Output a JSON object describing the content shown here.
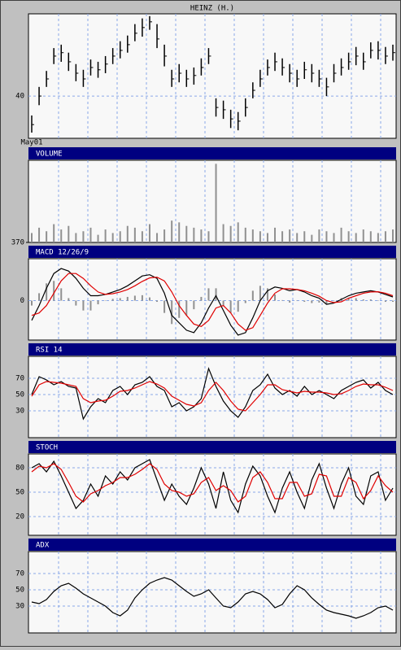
{
  "chart_data": [
    {
      "type": "ohlc",
      "title": "HEINZ (H.)",
      "ylim": [
        36.3,
        47.2
      ],
      "yticks": [
        40
      ],
      "grid": true,
      "color": "#000000",
      "categories": [
        "May01",
        null,
        null,
        null,
        null,
        null,
        null,
        null,
        null,
        null,
        null,
        null,
        null,
        null,
        null,
        null,
        null,
        null,
        null,
        null,
        null,
        null,
        null,
        null,
        null,
        null,
        null,
        null,
        null,
        null,
        null,
        null,
        null,
        null,
        null,
        null,
        null,
        null,
        null,
        null,
        null,
        null,
        null,
        null,
        null,
        null,
        null,
        null,
        null,
        null
      ],
      "high": [
        38.3,
        40.8,
        42.2,
        44.2,
        44.5,
        43.8,
        42.8,
        42.3,
        43.2,
        43,
        43.5,
        44.2,
        44.8,
        45.3,
        46.3,
        46.8,
        47,
        46.3,
        44.5,
        42.3,
        42.8,
        42.3,
        42.5,
        43.3,
        44.2,
        39.8,
        39.6,
        38.8,
        38.6,
        39.8,
        41.2,
        42.3,
        43.2,
        43.8,
        43.3,
        42.8,
        42.3,
        43,
        42.8,
        42.3,
        41.6,
        42.8,
        43.3,
        43.8,
        44.3,
        43.8,
        44.7,
        44.8,
        44.3,
        44.5
      ],
      "low": [
        36.8,
        39.2,
        40.8,
        42.8,
        43,
        42.2,
        41.3,
        40.8,
        41.8,
        41.6,
        42,
        42.8,
        43.3,
        43.8,
        44.8,
        45.2,
        45.8,
        44.2,
        42.6,
        40.8,
        41.2,
        40.8,
        41,
        41.8,
        42.8,
        38.2,
        38,
        37.2,
        37,
        38.2,
        39.8,
        40.8,
        41.8,
        42.2,
        41.8,
        41.2,
        40.8,
        41.5,
        41.2,
        40.8,
        40,
        41.2,
        41.8,
        42.3,
        42.7,
        42.3,
        43.3,
        43.2,
        42.8,
        43.1
      ],
      "close": [
        37.5,
        40,
        41.5,
        43.5,
        43.8,
        43,
        42,
        41.5,
        42.5,
        42.3,
        42.8,
        43.5,
        44,
        44.5,
        45.5,
        46,
        46.5,
        45,
        43.5,
        41.5,
        42,
        41.5,
        41.8,
        42.5,
        43.5,
        39,
        38.8,
        38,
        37.8,
        39,
        40.5,
        41.5,
        42.5,
        43,
        42.5,
        42,
        41.5,
        42.3,
        42,
        41.5,
        40.8,
        42,
        42.5,
        43,
        43.5,
        43,
        44,
        44,
        43.5,
        43.8
      ]
    },
    {
      "type": "bar",
      "title": "VOLUME",
      "ylim": [
        370,
        5000
      ],
      "yticks": [
        370
      ],
      "grid": false,
      "color": "#909090",
      "values": [
        900,
        1200,
        1000,
        1400,
        1100,
        1300,
        900,
        1000,
        1200,
        800,
        1100,
        900,
        1000,
        1300,
        1200,
        1000,
        1400,
        900,
        1100,
        1600,
        1500,
        1300,
        1200,
        1100,
        1000,
        4800,
        1400,
        1300,
        1500,
        1200,
        1100,
        1000,
        900,
        1200,
        1000,
        1100,
        900,
        1000,
        800,
        1100,
        1000,
        900,
        1200,
        1000,
        900,
        1100,
        1000,
        900,
        1000,
        1100
      ]
    },
    {
      "type": "line",
      "title": "MACD 12/26/9",
      "ylim": [
        -1.6,
        1.7
      ],
      "yticks": [
        0
      ],
      "grid": true,
      "series": [
        {
          "color": "#909090",
          "style": "bar",
          "values": [
            -0.2,
            0.3,
            0.7,
            0.8,
            0.5,
            0.1,
            -0.2,
            -0.4,
            -0.4,
            -0.15,
            0,
            0.07,
            0.1,
            0.15,
            0.2,
            0.22,
            0.13,
            -0.05,
            -0.5,
            -0.95,
            -0.7,
            -0.6,
            -0.35,
            0.15,
            0.5,
            0.5,
            -0.2,
            -0.5,
            -0.45,
            -0.1,
            0.4,
            0.6,
            0.5,
            0.25,
            0.02,
            -0.08,
            0,
            -0.05,
            -0.1,
            -0.08,
            -0.15,
            -0.02,
            0.1,
            0.1,
            0.1,
            0.05,
            0.05,
            -0.01,
            -0.05,
            -0.05
          ]
        },
        {
          "color": "#000000",
          "style": "line",
          "values": [
            -0.8,
            -0.2,
            0.5,
            1.1,
            1.3,
            1.2,
            0.9,
            0.5,
            0.2,
            0.2,
            0.25,
            0.35,
            0.45,
            0.6,
            0.8,
            1.0,
            1.05,
            0.9,
            0.3,
            -0.6,
            -0.9,
            -1.2,
            -1.3,
            -0.9,
            -0.3,
            0.2,
            -0.4,
            -1.0,
            -1.4,
            -1.3,
            -0.7,
            0.0,
            0.4,
            0.55,
            0.5,
            0.4,
            0.45,
            0.35,
            0.2,
            0.1,
            -0.15,
            -0.1,
            0.05,
            0.2,
            0.3,
            0.35,
            0.4,
            0.35,
            0.25,
            0.15
          ]
        },
        {
          "color": "#e00000",
          "style": "line",
          "values": [
            -0.6,
            -0.5,
            -0.2,
            0.3,
            0.8,
            1.1,
            1.1,
            0.9,
            0.6,
            0.35,
            0.25,
            0.28,
            0.35,
            0.45,
            0.6,
            0.78,
            0.92,
            0.95,
            0.8,
            0.35,
            -0.2,
            -0.6,
            -0.95,
            -1.05,
            -0.8,
            -0.3,
            -0.2,
            -0.5,
            -0.95,
            -1.2,
            -1.1,
            -0.6,
            -0.1,
            0.3,
            0.48,
            0.48,
            0.45,
            0.4,
            0.3,
            0.18,
            0.0,
            -0.08,
            -0.05,
            0.1,
            0.2,
            0.3,
            0.35,
            0.36,
            0.3,
            0.2
          ]
        }
      ]
    },
    {
      "type": "line",
      "title": "RSI 14",
      "ylim": [
        -3,
        97
      ],
      "yticks": [
        70,
        50,
        30
      ],
      "grid": true,
      "series": [
        {
          "color": "#000000",
          "style": "line",
          "values": [
            50,
            72,
            68,
            62,
            66,
            60,
            58,
            20,
            35,
            45,
            40,
            55,
            60,
            50,
            62,
            65,
            72,
            60,
            55,
            35,
            40,
            30,
            35,
            45,
            82,
            60,
            42,
            30,
            22,
            35,
            55,
            62,
            75,
            58,
            50,
            55,
            48,
            60,
            50,
            55,
            50,
            45,
            55,
            60,
            65,
            68,
            58,
            65,
            55,
            50
          ]
        },
        {
          "color": "#e00000",
          "style": "line",
          "values": [
            48,
            62,
            66,
            65,
            64,
            62,
            60,
            45,
            40,
            42,
            43,
            48,
            54,
            55,
            58,
            62,
            66,
            63,
            58,
            48,
            43,
            38,
            36,
            40,
            55,
            65,
            55,
            42,
            32,
            30,
            40,
            50,
            62,
            62,
            56,
            54,
            52,
            54,
            53,
            53,
            52,
            50,
            51,
            55,
            60,
            63,
            62,
            62,
            59,
            55
          ]
        }
      ]
    },
    {
      "type": "line",
      "title": "STOCH",
      "ylim": [
        -3,
        97
      ],
      "yticks": [
        80,
        50,
        20
      ],
      "grid": true,
      "series": [
        {
          "color": "#000000",
          "style": "line",
          "values": [
            80,
            85,
            75,
            88,
            70,
            50,
            30,
            40,
            60,
            45,
            70,
            60,
            75,
            65,
            80,
            85,
            90,
            65,
            40,
            60,
            45,
            35,
            55,
            80,
            60,
            30,
            75,
            40,
            25,
            60,
            82,
            70,
            45,
            25,
            55,
            75,
            50,
            30,
            65,
            85,
            55,
            30,
            60,
            80,
            45,
            35,
            70,
            75,
            40,
            55
          ]
        },
        {
          "color": "#e00000",
          "style": "line",
          "values": [
            75,
            82,
            80,
            85,
            78,
            62,
            45,
            38,
            48,
            52,
            58,
            62,
            68,
            68,
            72,
            78,
            85,
            78,
            60,
            52,
            50,
            45,
            48,
            62,
            68,
            52,
            58,
            52,
            38,
            45,
            68,
            75,
            62,
            42,
            42,
            62,
            62,
            45,
            48,
            72,
            70,
            45,
            45,
            68,
            62,
            42,
            52,
            70,
            58,
            50
          ]
        }
      ]
    },
    {
      "type": "line",
      "title": "ADX",
      "ylim": [
        -3,
        97
      ],
      "yticks": [
        70,
        50,
        30
      ],
      "grid": true,
      "series": [
        {
          "color": "#000000",
          "style": "line",
          "values": [
            35,
            33,
            38,
            48,
            55,
            58,
            52,
            45,
            40,
            35,
            30,
            22,
            18,
            25,
            40,
            50,
            58,
            62,
            65,
            62,
            55,
            48,
            42,
            45,
            50,
            40,
            30,
            28,
            35,
            45,
            48,
            45,
            38,
            28,
            32,
            45,
            55,
            50,
            40,
            32,
            25,
            22,
            20,
            18,
            15,
            18,
            22,
            28,
            30,
            25
          ]
        }
      ]
    }
  ]
}
